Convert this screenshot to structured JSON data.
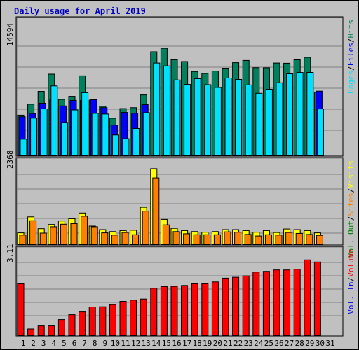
{
  "chart_data": [
    {
      "type": "bar",
      "title": "Daily usage for April 2019",
      "x": [
        "1",
        "2",
        "3",
        "4",
        "5",
        "6",
        "7",
        "8",
        "9",
        "10",
        "11",
        "12",
        "13",
        "14",
        "15",
        "16",
        "17",
        "18",
        "19",
        "20",
        "21",
        "22",
        "23",
        "24",
        "25",
        "26",
        "27",
        "28",
        "29",
        "30",
        "31"
      ],
      "weekend_days": [
        "6",
        "7",
        "13",
        "14",
        "20",
        "21",
        "27",
        "28"
      ],
      "ytick": "14594",
      "ylim": [
        0,
        14594
      ],
      "series": [
        {
          "name": "Hits",
          "color": "#00805c",
          "values": [
            5390,
            6840,
            8560,
            10850,
            7480,
            7900,
            10630,
            7380,
            6570,
            4970,
            6260,
            6380,
            8080,
            13850,
            14300,
            12780,
            12540,
            11210,
            10950,
            11260,
            11650,
            12390,
            12690,
            11710,
            11700,
            12340,
            12310,
            12770,
            13100,
            8440,
            0
          ]
        },
        {
          "name": "Files",
          "color": "#0000ff",
          "values": [
            5160,
            5590,
            6970,
            7410,
            6610,
            7350,
            7340,
            7440,
            6390,
            4030,
            5740,
            5630,
            6780,
            0,
            0,
            0,
            0,
            0,
            0,
            0,
            0,
            0,
            0,
            0,
            0,
            0,
            0,
            0,
            0,
            8590,
            0
          ]
        },
        {
          "name": "Pages",
          "color": "#00e0ff",
          "values": [
            2170,
            4980,
            6220,
            9280,
            4420,
            6080,
            8380,
            5620,
            5530,
            2730,
            2240,
            3600,
            5720,
            12340,
            11960,
            10080,
            9490,
            10240,
            9450,
            9070,
            10340,
            10150,
            9410,
            8300,
            8840,
            9700,
            10900,
            11080,
            11090,
            6210,
            0
          ]
        }
      ],
      "legend": [
        "Hits",
        "Files",
        "Pages"
      ]
    },
    {
      "type": "bar",
      "ytick": "2368",
      "ylim": [
        0,
        2368
      ],
      "series": [
        {
          "name": "Visits",
          "color": "#ffff00",
          "values": [
            360,
            860,
            490,
            620,
            730,
            800,
            980,
            570,
            460,
            400,
            430,
            440,
            1160,
            2370,
            780,
            500,
            430,
            400,
            380,
            400,
            460,
            460,
            430,
            380,
            430,
            370,
            480,
            460,
            430,
            360,
            0
          ]
        },
        {
          "name": "Sites",
          "color": "#ff8000",
          "values": [
            290,
            740,
            350,
            550,
            630,
            650,
            880,
            550,
            360,
            290,
            370,
            300,
            1040,
            2080,
            610,
            400,
            330,
            300,
            300,
            300,
            390,
            380,
            310,
            260,
            300,
            290,
            370,
            340,
            310,
            280,
            0
          ]
        }
      ],
      "legend": [
        "Visits",
        "Sites",
        "Vol. Out"
      ]
    },
    {
      "type": "bar",
      "ytick": "3.11",
      "ylim": [
        0,
        3.11
      ],
      "series": [
        {
          "name": "Volume",
          "color": "#ff0000",
          "values": [
            2.2,
            0.27,
            0.4,
            0.4,
            0.67,
            0.88,
            1.0,
            1.21,
            1.22,
            1.31,
            1.45,
            1.5,
            1.55,
            2.01,
            2.08,
            2.09,
            2.13,
            2.2,
            2.2,
            2.28,
            2.44,
            2.48,
            2.54,
            2.7,
            2.73,
            2.79,
            2.79,
            2.82,
            3.22,
            3.13,
            0
          ]
        }
      ],
      "legend": [
        "Volume",
        "Vol. In"
      ]
    }
  ],
  "colors": {
    "background": "#c0c0c0",
    "title": "#0000c0",
    "weekday_label": "#000000",
    "weekend_label": "#00805c",
    "hits": "#00805c",
    "files": "#0000ff",
    "pages": "#00e0ff",
    "visits": "#ffff00",
    "sites": "#ff8000",
    "volume": "#ff0000",
    "vol_out": "#008000",
    "vol_in": "#0000ff"
  }
}
